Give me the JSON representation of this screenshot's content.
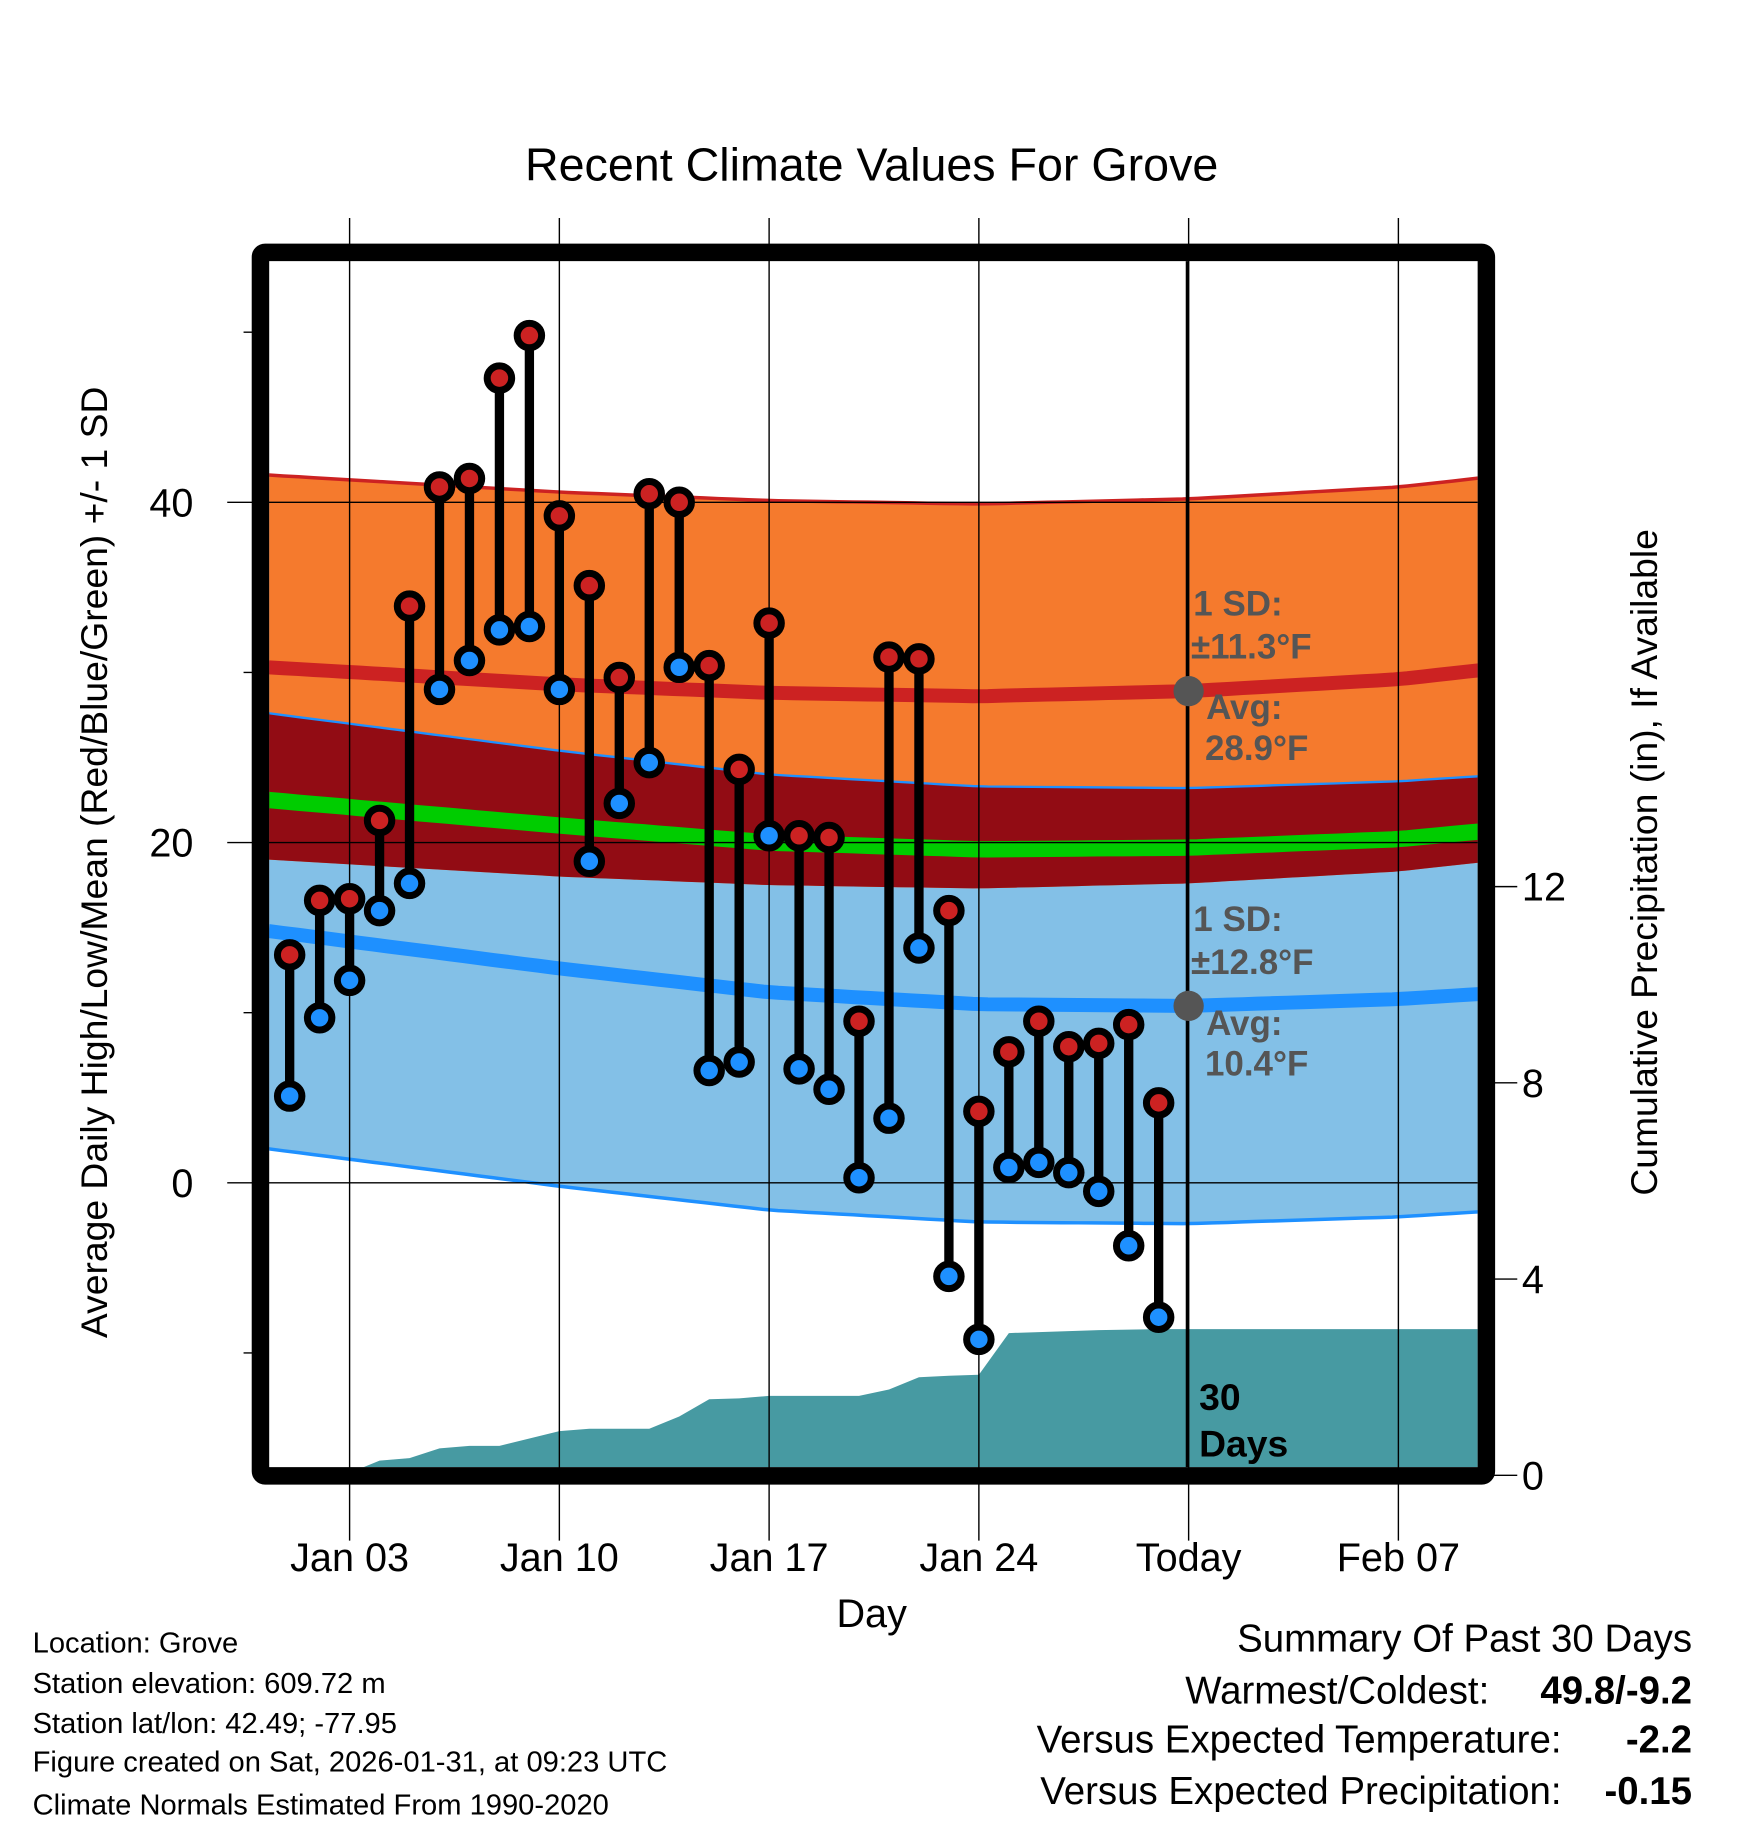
{
  "chart_data": {
    "type": "line",
    "title": "Recent Climate Values For Grove",
    "xlabel": "Day",
    "ylabel_left": "Average Daily High/Low/Mean (Red/Blue/Green) +/- 1 SD",
    "ylabel_right": "Cumulative Precipitation (in), If Available",
    "x_ticks": [
      {
        "day": 3,
        "label": "Jan 03"
      },
      {
        "day": 10,
        "label": "Jan 10"
      },
      {
        "day": 17,
        "label": "Jan 17"
      },
      {
        "day": 24,
        "label": "Jan 24"
      },
      {
        "day": 31,
        "label": "Today"
      },
      {
        "day": 38,
        "label": "Feb 07"
      }
    ],
    "x_range_days": [
      0.3,
      41.6
    ],
    "today_day": 31,
    "y_left_ticks": [
      0,
      20,
      40
    ],
    "y_left_minor_ticks": [
      -10,
      10,
      30,
      50
    ],
    "y_left_range": [
      -16.7,
      54.8
    ],
    "y_right_ticks": [
      0,
      4,
      8,
      12
    ],
    "grid": true,
    "days": [
      1,
      2,
      3,
      4,
      5,
      6,
      7,
      8,
      9,
      10,
      11,
      12,
      13,
      14,
      15,
      16,
      17,
      18,
      19,
      20,
      21,
      22,
      23,
      24,
      25,
      26,
      27,
      28,
      29,
      30
    ],
    "series": [
      {
        "name": "Daily High",
        "color": "#cc2222",
        "values": [
          13.4,
          16.6,
          16.7,
          21.3,
          33.9,
          40.9,
          41.4,
          47.3,
          49.8,
          39.2,
          35.1,
          29.7,
          40.5,
          40.0,
          30.4,
          24.3,
          32.9,
          20.4,
          20.3,
          9.5,
          30.9,
          30.8,
          16.0,
          4.2,
          7.7,
          9.5,
          8.0,
          8.2,
          9.3,
          4.7
        ]
      },
      {
        "name": "Daily Low",
        "color": "#1e90ff",
        "values": [
          5.1,
          9.7,
          11.9,
          16.0,
          17.6,
          29.0,
          30.7,
          32.5,
          32.7,
          29.0,
          18.9,
          22.3,
          24.7,
          30.3,
          6.6,
          7.1,
          20.4,
          6.7,
          5.5,
          0.3,
          3.8,
          13.8,
          -5.5,
          -9.2,
          0.9,
          1.2,
          0.6,
          -0.5,
          -3.7,
          -7.9
        ]
      },
      {
        "name": "Cumulative Precipitation",
        "color": "#479aa2",
        "values": [
          0,
          0,
          0.05,
          0.3,
          0.35,
          0.55,
          0.6,
          0.6,
          0.75,
          0.9,
          0.95,
          0.95,
          0.95,
          1.2,
          1.55,
          1.57,
          1.62,
          1.62,
          1.62,
          1.62,
          1.75,
          2.0,
          2.03,
          2.05,
          2.9,
          2.92,
          2.94,
          2.96,
          2.97,
          2.98
        ]
      }
    ],
    "normals": {
      "days": [
        0.3,
        10,
        17,
        24,
        31,
        38,
        41.6
      ],
      "mean_high": [
        30.3,
        29.3,
        28.8,
        28.6,
        28.9,
        29.6,
        30.3
      ],
      "mean_low": [
        14.8,
        12.6,
        11.2,
        10.5,
        10.4,
        10.8,
        11.2
      ],
      "mean": [
        22.5,
        21.0,
        20.0,
        19.6,
        19.7,
        20.2,
        20.8
      ],
      "sd_high": 11.3,
      "sd_low": 12.8,
      "colors": {
        "high_band": "#f57a2d",
        "low_band": "#83c0e7",
        "overlap": "#920c14",
        "high_line": "#cc2222",
        "low_line": "#1e90ff",
        "mean_line": "#00cc00"
      }
    },
    "annotations": {
      "high_sd_label": "1 SD:",
      "high_sd_value": "±11.3°F",
      "high_avg_label": "Avg:",
      "high_avg_value": "28.9°F",
      "low_sd_label": "1 SD:",
      "low_sd_value": "±12.8°F",
      "low_avg_label": "Avg:",
      "low_avg_value": "10.4°F",
      "days_count": "30",
      "days_word": "Days"
    }
  },
  "info": {
    "location": "Location: Grove",
    "elevation": "Station elevation: 609.72 m",
    "latlon": "Station lat/lon: 42.49; -77.95",
    "created": "Figure created on Sat, 2026-01-31, at 09:23 UTC",
    "normals": "Climate Normals Estimated From 1990-2020"
  },
  "summary": {
    "title": "Summary Of Past 30 Days",
    "warmest_label": "Warmest/Coldest:",
    "warmest_value": "49.8/-9.2",
    "temp_label": "Versus Expected Temperature:",
    "temp_value": "-2.2",
    "temp_color": "#1e90ff",
    "precip_label": "Versus Expected Precipitation:",
    "precip_value": "-0.15",
    "precip_color": "#a0522d"
  }
}
